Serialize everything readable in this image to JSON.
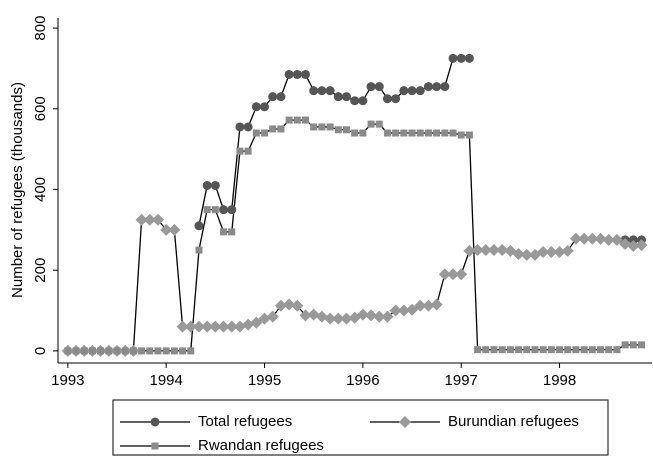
{
  "chart_data": {
    "type": "line",
    "y_label": "Number of refugees (thousands)",
    "x": [
      1993,
      1993.0833,
      1993.1667,
      1993.25,
      1993.3333,
      1993.4167,
      1993.5,
      1993.5833,
      1993.6667,
      1993.75,
      1993.8333,
      1993.9167,
      1994,
      1994.0833,
      1994.1667,
      1994.25,
      1994.3333,
      1994.4167,
      1994.5,
      1994.5833,
      1994.6667,
      1994.75,
      1994.8333,
      1994.9167,
      1995,
      1995.0833,
      1995.1667,
      1995.25,
      1995.3333,
      1995.4167,
      1995.5,
      1995.5833,
      1995.6667,
      1995.75,
      1995.8333,
      1995.9167,
      1996,
      1996.0833,
      1996.1667,
      1996.25,
      1996.3333,
      1996.4167,
      1996.5,
      1996.5833,
      1996.6667,
      1996.75,
      1996.8333,
      1996.9167,
      1997,
      1997.0833,
      1997.1667,
      1997.25,
      1997.3333,
      1997.4167,
      1997.5,
      1997.5833,
      1997.6667,
      1997.75,
      1997.8333,
      1997.9167,
      1998,
      1998.0833,
      1998.1667,
      1998.25,
      1998.3333,
      1998.4167,
      1998.5,
      1998.5833,
      1998.6667,
      1998.75,
      1998.8333
    ],
    "series": [
      {
        "name": "Total refugees",
        "color": "#555555",
        "marker": "circle",
        "values": [
          null,
          null,
          null,
          null,
          null,
          null,
          null,
          null,
          null,
          null,
          null,
          null,
          null,
          null,
          null,
          null,
          310,
          410,
          410,
          350,
          350,
          555,
          555,
          605,
          605,
          630,
          630,
          685,
          685,
          685,
          645,
          645,
          645,
          630,
          630,
          620,
          620,
          655,
          655,
          625,
          625,
          645,
          645,
          645,
          655,
          655,
          655,
          725,
          725,
          725,
          null,
          null,
          null,
          null,
          null,
          null,
          null,
          null,
          null,
          null,
          null,
          null,
          null,
          null,
          null,
          null,
          null,
          null,
          275,
          275,
          275
        ]
      },
      {
        "name": "Burundian refugees",
        "color": "#999999",
        "marker": "diamond",
        "values": [
          0,
          0,
          0,
          0,
          0,
          0,
          0,
          0,
          0,
          325,
          325,
          325,
          300,
          300,
          60,
          60,
          60,
          60,
          60,
          60,
          60,
          60,
          65,
          70,
          80,
          85,
          112,
          115,
          112,
          88,
          90,
          85,
          80,
          80,
          80,
          82,
          90,
          88,
          85,
          85,
          100,
          100,
          102,
          112,
          112,
          115,
          190,
          190,
          190,
          248,
          250,
          250,
          250,
          250,
          248,
          240,
          238,
          238,
          245,
          245,
          245,
          248,
          278,
          278,
          278,
          278,
          275,
          275,
          265,
          260,
          262
        ]
      },
      {
        "name": "Rwandan refugees",
        "color": "#8a8a8a",
        "marker": "square",
        "values": [
          0,
          0,
          0,
          0,
          0,
          0,
          0,
          0,
          0,
          0,
          0,
          0,
          0,
          0,
          0,
          0,
          250,
          350,
          350,
          295,
          295,
          495,
          495,
          540,
          540,
          550,
          550,
          572,
          572,
          572,
          555,
          555,
          555,
          548,
          548,
          540,
          540,
          562,
          562,
          540,
          540,
          540,
          540,
          540,
          540,
          540,
          540,
          540,
          535,
          535,
          3,
          3,
          3,
          3,
          3,
          3,
          3,
          3,
          3,
          3,
          3,
          3,
          3,
          3,
          3,
          3,
          3,
          3,
          15,
          15,
          15
        ]
      }
    ],
    "xlim": [
      1992.9,
      1998.94
    ],
    "xticks": [
      1993,
      1994,
      1995,
      1996,
      1997,
      1998
    ],
    "ylim": [
      -30,
      825
    ],
    "yticks": [
      0,
      200,
      400,
      600,
      800
    ]
  }
}
